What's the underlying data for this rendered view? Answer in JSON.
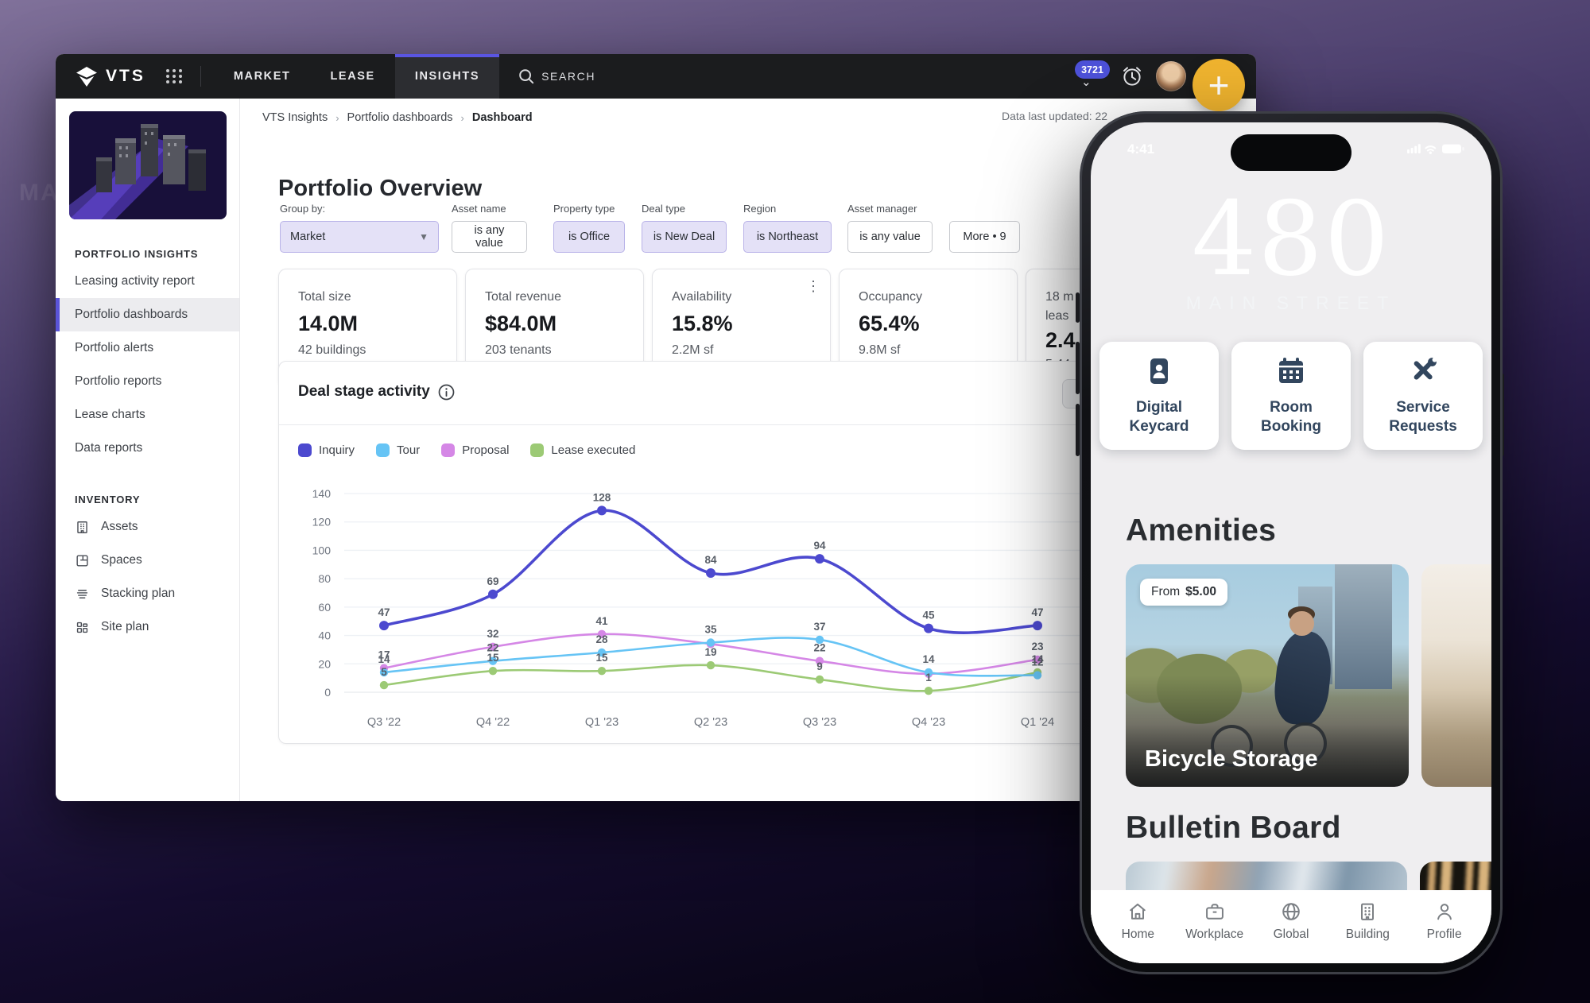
{
  "backdrop_text": "MA",
  "colors": {
    "nav_accent": "#5a55e2",
    "fab_yellow": "#f0b42f",
    "badge_blue": "#4d51d8",
    "filter_active_bg": "#e4e1f7",
    "sidebar_active_bar": "#5a54d8",
    "phone_card_text": "#32465e"
  },
  "window": {
    "nav": {
      "logo_text": "VTS",
      "tabs": [
        {
          "label": "MARKET"
        },
        {
          "label": "LEASE"
        },
        {
          "label": "INSIGHTS"
        }
      ],
      "active_tab": "INSIGHTS",
      "search_label": "SEARCH",
      "notification_count": "3721",
      "fab_label": "+"
    },
    "sidebar": {
      "section1_title": "PORTFOLIO INSIGHTS",
      "section1_items": [
        {
          "label": "Leasing activity report"
        },
        {
          "label": "Portfolio dashboards"
        },
        {
          "label": "Portfolio alerts"
        },
        {
          "label": "Portfolio reports"
        },
        {
          "label": "Lease charts"
        },
        {
          "label": "Data reports"
        }
      ],
      "active_item": "Portfolio dashboards",
      "section2_title": "INVENTORY",
      "section2_items": [
        {
          "label": "Assets",
          "icon": "building-icon"
        },
        {
          "label": "Spaces",
          "icon": "floorplan-icon"
        },
        {
          "label": "Stacking plan",
          "icon": "stack-icon"
        },
        {
          "label": "Site plan",
          "icon": "blocks-icon"
        }
      ]
    },
    "breadcrumb": {
      "item1": "VTS Insights",
      "item2": "Portfolio dashboards",
      "item3": "Dashboard"
    },
    "last_updated": "Data last updated: 22",
    "page_title": "Portfolio Overview",
    "filters": {
      "group_by_label": "Group by:",
      "group_by_value": "Market",
      "fields": [
        {
          "label": "Asset name",
          "value": "is any value",
          "active": false
        },
        {
          "label": "Property type",
          "value": "is Office",
          "active": true
        },
        {
          "label": "Deal type",
          "value": "is New Deal",
          "active": true
        },
        {
          "label": "Region",
          "value": "is Northeast",
          "active": true
        },
        {
          "label": "Asset manager",
          "value": "is any value",
          "active": false
        }
      ],
      "more_label": "More • 9"
    },
    "kpis": [
      {
        "label": "Total size",
        "value": "14.0M",
        "sub": "42 buildings"
      },
      {
        "label": "Total revenue",
        "value": "$84.0M",
        "sub": "203 tenants"
      },
      {
        "label": "Availability",
        "value": "15.8%",
        "sub": "2.2M sf"
      },
      {
        "label": "Occupancy",
        "value": "65.4%",
        "sub": "9.8M sf"
      },
      {
        "label": "18 m",
        "label2": "leas",
        "value": "2.4",
        "sub": "5.44"
      }
    ],
    "chart_header": {
      "title": "Deal stage activity"
    }
  },
  "chart_data": {
    "type": "line",
    "title": "Deal stage activity",
    "categories": [
      "Q3 '22",
      "Q4 '22",
      "Q1 '23",
      "Q2 '23",
      "Q3 '23",
      "Q4 '23",
      "Q1 '24"
    ],
    "series": [
      {
        "name": "Inquiry",
        "color": "#4c49cf",
        "values": [
          47,
          69,
          128,
          84,
          94,
          45,
          47
        ],
        "labels": [
          "47",
          "69",
          "128",
          "84",
          "94",
          "45",
          "47"
        ]
      },
      {
        "name": "Tour",
        "color": "#66c4f5",
        "values": [
          14,
          22,
          28,
          35,
          37,
          14,
          12
        ],
        "labels": [
          "14",
          "22",
          "28",
          "35",
          "37",
          "14",
          "12"
        ]
      },
      {
        "name": "Proposal",
        "color": "#d587e6",
        "values": [
          17,
          32,
          41,
          34,
          22,
          13,
          23
        ],
        "labels": [
          "17",
          "32",
          "41",
          null,
          "22",
          null,
          "23"
        ]
      },
      {
        "name": "Lease executed",
        "color": "#9cca75",
        "values": [
          5,
          15,
          15,
          19,
          9,
          1,
          14
        ],
        "labels": [
          "5",
          "15",
          "15",
          "19",
          "9",
          "1",
          "14"
        ]
      }
    ],
    "ylim": [
      0,
      140
    ],
    "ytick_step": 20,
    "grid": true,
    "legend_position": "top-left"
  },
  "phone": {
    "status": {
      "time": "4:41"
    },
    "hero": {
      "number": "480",
      "street": "MAIN STREET"
    },
    "actions": [
      {
        "icon": "keycard-icon",
        "line1": "Digital",
        "line2": "Keycard"
      },
      {
        "icon": "calendar-icon",
        "line1": "Room",
        "line2": "Booking"
      },
      {
        "icon": "tools-icon",
        "line1": "Service",
        "line2": "Requests"
      }
    ],
    "amenities": {
      "title": "Amenities",
      "badge_from": "From",
      "badge_price": "$5.00",
      "card_title": "Bicycle Storage"
    },
    "bulletin": {
      "title": "Bulletin Board"
    },
    "tabbar": [
      {
        "icon": "home-icon",
        "label": "Home"
      },
      {
        "icon": "briefcase-icon",
        "label": "Workplace"
      },
      {
        "icon": "globe-icon",
        "label": "Global"
      },
      {
        "icon": "building-icon",
        "label": "Building"
      },
      {
        "icon": "user-icon",
        "label": "Profile"
      }
    ]
  }
}
